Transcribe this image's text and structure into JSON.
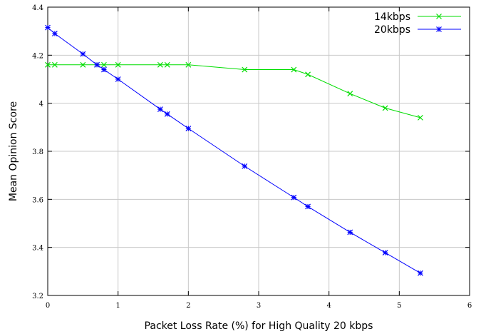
{
  "chart_data": {
    "type": "line",
    "xlabel": "Packet Loss Rate (%) for High Quality 20 kbps",
    "ylabel": "Mean Opinion Score",
    "xlim": [
      0,
      6
    ],
    "ylim": [
      3.2,
      4.4
    ],
    "xticks": [
      0,
      1,
      2,
      3,
      4,
      5,
      6
    ],
    "yticks": [
      3.2,
      3.4,
      3.6,
      3.8,
      4,
      4.2,
      4.4
    ],
    "grid": true,
    "legend_position": "top-right",
    "series": [
      {
        "name": "14kbps",
        "color": "#00dd00",
        "marker": "x",
        "x": [
          0,
          0.1,
          0.5,
          0.7,
          0.8,
          1.0,
          1.6,
          1.7,
          2.0,
          2.8,
          3.5,
          3.7,
          4.3,
          4.8,
          5.3
        ],
        "y": [
          4.16,
          4.16,
          4.16,
          4.16,
          4.16,
          4.16,
          4.16,
          4.16,
          4.16,
          4.14,
          4.14,
          4.12,
          4.04,
          3.98,
          3.94
        ]
      },
      {
        "name": "20kbps",
        "color": "#0000ff",
        "marker": "star",
        "x": [
          0,
          0.1,
          0.5,
          0.7,
          0.8,
          1.0,
          1.6,
          1.7,
          2.0,
          2.8,
          3.5,
          3.7,
          4.3,
          4.8,
          5.3
        ],
        "y": [
          4.315,
          4.29,
          4.205,
          4.16,
          4.14,
          4.1,
          3.975,
          3.955,
          3.895,
          3.738,
          3.608,
          3.57,
          3.463,
          3.378,
          3.293
        ]
      }
    ]
  }
}
